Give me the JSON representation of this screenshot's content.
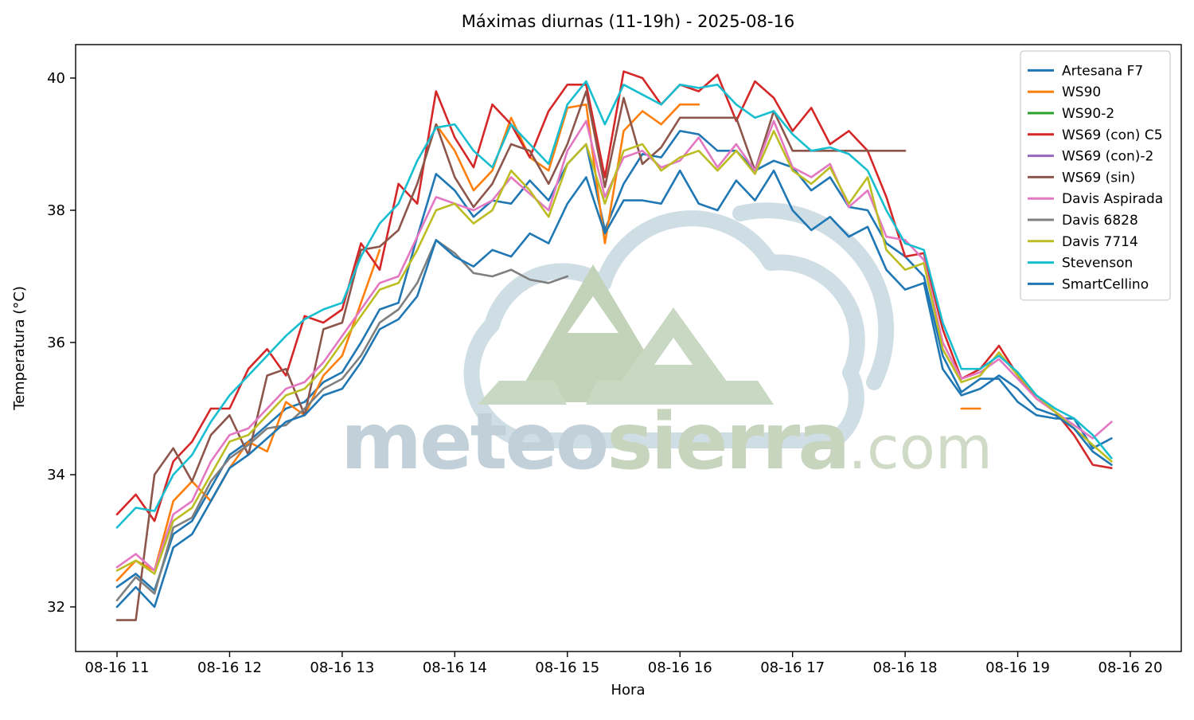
{
  "title": "Máximas diurnas (11-19h) - 2025-08-16",
  "xlabel": "Hora",
  "ylabel": "Temperatura (°C)",
  "watermark": {
    "part_blue": "meteo",
    "part_green": "sierra",
    "part_suffix": ".com"
  },
  "colors": {
    "spine": "#000000",
    "legend_border": "#cccccc",
    "watermark_blue": "#bccdd6",
    "watermark_green": "#c3d2b9",
    "watermark_light_green": "#ccd9c2",
    "watermark_cloud": "#ccdce3"
  },
  "chart_data": {
    "type": "line",
    "title": "Máximas diurnas (11-19h) - 2025-08-16",
    "xlabel": "Hora",
    "ylabel": "Temperatura (°C)",
    "x_tick_labels": [
      "08-16 11",
      "08-16 12",
      "08-16 13",
      "08-16 14",
      "08-16 15",
      "08-16 16",
      "08-16 17",
      "08-16 18",
      "08-16 19",
      "08-16 20"
    ],
    "x_tick_minutes": [
      660,
      720,
      780,
      840,
      900,
      960,
      1020,
      1080,
      1140,
      1200
    ],
    "y_ticks": [
      32,
      34,
      36,
      38,
      40
    ],
    "ylim": [
      31.3,
      40.5
    ],
    "xlim_minutes": [
      638,
      1227
    ],
    "grid": false,
    "legend_position": "upper right",
    "x_minutes": [
      660,
      670,
      680,
      690,
      700,
      710,
      720,
      730,
      740,
      750,
      760,
      770,
      780,
      790,
      800,
      810,
      820,
      830,
      840,
      850,
      860,
      870,
      880,
      890,
      900,
      910,
      920,
      930,
      940,
      950,
      960,
      970,
      980,
      990,
      1000,
      1010,
      1020,
      1030,
      1040,
      1050,
      1060,
      1070,
      1080,
      1090,
      1100,
      1110,
      1120,
      1130,
      1140,
      1150,
      1160,
      1170,
      1180,
      1190
    ],
    "series": [
      {
        "name": "Artesana F7",
        "color": "#1f77b4",
        "values": [
          32.3,
          32.5,
          32.25,
          33.1,
          33.3,
          33.8,
          34.3,
          34.5,
          34.75,
          35.0,
          35.1,
          35.4,
          35.55,
          36.0,
          36.5,
          36.6,
          37.6,
          38.55,
          38.3,
          37.9,
          38.15,
          38.1,
          38.45,
          38.15,
          38.7,
          39.0,
          37.7,
          38.4,
          38.85,
          38.8,
          39.2,
          39.15,
          38.9,
          38.9,
          38.6,
          38.75,
          38.65,
          38.3,
          38.5,
          38.05,
          38.0,
          37.5,
          37.3,
          37.0,
          35.8,
          35.25,
          35.45,
          35.45,
          35.1,
          34.9,
          34.85,
          34.85,
          34.4,
          34.55
        ]
      },
      {
        "name": "WS90",
        "color": "#ff7f0e",
        "values": [
          32.4,
          32.7,
          32.55,
          33.6,
          33.9,
          33.6,
          34.1,
          34.5,
          34.35,
          35.1,
          34.9,
          35.5,
          35.8,
          36.6,
          37.4,
          null,
          null,
          39.3,
          38.9,
          38.3,
          38.6,
          39.4,
          38.8,
          38.6,
          39.55,
          39.6,
          37.5,
          39.2,
          39.5,
          39.3,
          39.6,
          39.6,
          null,
          null,
          null,
          null,
          null,
          null,
          null,
          null,
          null,
          null,
          null,
          null,
          null,
          35.0,
          35.0,
          null,
          null,
          null,
          null,
          null,
          null,
          null
        ]
      },
      {
        "name": "WS90-2",
        "color": "#2ca02c",
        "values": [
          null,
          null,
          null,
          null,
          null,
          null,
          null,
          null,
          null,
          null,
          null,
          null,
          null,
          null,
          null,
          null,
          null,
          null,
          null,
          null,
          null,
          null,
          null,
          null,
          null,
          null,
          null,
          null,
          null,
          null,
          null,
          null,
          null,
          null,
          null,
          null,
          null,
          null,
          null,
          null,
          null,
          null,
          null,
          null,
          null,
          null,
          null,
          null,
          null,
          null,
          null,
          null,
          null,
          null
        ]
      },
      {
        "name": "WS69 (con) C5",
        "color": "#d62728",
        "values": [
          33.4,
          33.7,
          33.3,
          34.2,
          34.5,
          35.0,
          35.0,
          35.6,
          35.9,
          35.5,
          36.4,
          36.3,
          36.5,
          37.5,
          37.1,
          38.4,
          38.1,
          39.8,
          39.1,
          38.65,
          39.6,
          39.3,
          38.8,
          39.5,
          39.9,
          39.9,
          38.5,
          40.1,
          40.0,
          39.6,
          39.9,
          39.8,
          40.05,
          39.35,
          39.95,
          39.7,
          39.2,
          39.55,
          39.0,
          39.2,
          38.9,
          38.2,
          37.3,
          37.35,
          36.2,
          35.45,
          35.6,
          35.95,
          35.5,
          35.15,
          34.95,
          34.6,
          34.15,
          34.1
        ]
      },
      {
        "name": "WS69 (con)-2",
        "color": "#9467bd",
        "values": [
          null,
          null,
          null,
          null,
          null,
          null,
          null,
          null,
          null,
          null,
          null,
          null,
          null,
          null,
          null,
          null,
          null,
          null,
          null,
          null,
          null,
          null,
          null,
          null,
          null,
          null,
          null,
          null,
          null,
          null,
          null,
          null,
          null,
          null,
          null,
          null,
          null,
          null,
          null,
          null,
          null,
          null,
          null,
          null,
          null,
          null,
          null,
          null,
          null,
          null,
          null,
          null,
          null,
          null
        ]
      },
      {
        "name": "WS69 (sin)",
        "color": "#8c564b",
        "values": [
          31.8,
          31.8,
          34.0,
          34.4,
          33.9,
          34.6,
          34.9,
          34.3,
          35.5,
          35.6,
          34.9,
          36.2,
          36.3,
          37.4,
          37.45,
          37.7,
          38.4,
          39.3,
          38.5,
          38.05,
          38.4,
          39.0,
          38.9,
          38.4,
          39.0,
          39.8,
          38.35,
          39.7,
          38.7,
          38.95,
          39.4,
          39.4,
          39.4,
          39.4,
          38.6,
          39.5,
          38.9,
          38.9,
          38.9,
          38.9,
          38.9,
          38.9,
          38.9,
          null,
          null,
          null,
          null,
          null,
          null,
          null,
          null,
          null,
          null,
          null
        ]
      },
      {
        "name": "Davis Aspirada",
        "color": "#e377c2",
        "values": [
          32.6,
          32.8,
          32.55,
          33.4,
          33.6,
          34.2,
          34.6,
          34.7,
          35.0,
          35.3,
          35.4,
          35.7,
          36.1,
          36.5,
          36.9,
          37.0,
          37.6,
          38.2,
          38.1,
          38.0,
          38.15,
          38.5,
          38.25,
          38.0,
          38.9,
          39.35,
          38.2,
          38.8,
          38.9,
          38.65,
          38.75,
          39.1,
          38.65,
          39.0,
          38.6,
          39.35,
          38.65,
          38.5,
          38.7,
          38.05,
          38.3,
          37.6,
          37.55,
          37.25,
          36.0,
          35.45,
          35.55,
          35.75,
          35.45,
          35.15,
          34.95,
          34.75,
          34.55,
          34.8
        ]
      },
      {
        "name": "Davis 6828",
        "color": "#7f7f7f",
        "values": [
          32.1,
          32.45,
          32.2,
          33.2,
          33.35,
          33.9,
          34.25,
          34.45,
          34.7,
          34.75,
          35.0,
          35.3,
          35.45,
          35.8,
          36.3,
          36.5,
          36.9,
          37.55,
          37.35,
          37.05,
          37.0,
          37.1,
          36.95,
          36.9,
          37.0,
          null,
          null,
          null,
          null,
          null,
          null,
          null,
          null,
          null,
          null,
          null,
          null,
          null,
          null,
          null,
          null,
          null,
          null,
          null,
          null,
          null,
          null,
          null,
          null,
          null,
          null,
          null,
          null,
          null
        ]
      },
      {
        "name": "Davis 7714",
        "color": "#bcbd22",
        "values": [
          32.55,
          32.7,
          32.5,
          33.3,
          33.5,
          34.0,
          34.5,
          34.6,
          34.9,
          35.2,
          35.3,
          35.6,
          36.0,
          36.4,
          36.8,
          36.9,
          37.4,
          38.0,
          38.1,
          37.8,
          38.0,
          38.6,
          38.3,
          37.9,
          38.7,
          39.0,
          38.1,
          38.9,
          39.0,
          38.6,
          38.8,
          38.9,
          38.6,
          38.9,
          38.55,
          39.2,
          38.6,
          38.4,
          38.65,
          38.1,
          38.5,
          37.4,
          37.1,
          37.2,
          35.9,
          35.4,
          35.5,
          35.85,
          35.5,
          35.2,
          34.95,
          34.7,
          34.45,
          34.2
        ]
      },
      {
        "name": "Stevenson",
        "color": "#17becf",
        "values": [
          33.2,
          33.5,
          33.45,
          34.0,
          34.3,
          34.8,
          35.2,
          35.5,
          35.8,
          36.1,
          36.35,
          36.5,
          36.6,
          37.3,
          37.8,
          38.1,
          38.75,
          39.25,
          39.3,
          38.9,
          38.65,
          39.3,
          39.0,
          38.7,
          39.6,
          39.95,
          39.3,
          39.9,
          39.75,
          39.6,
          39.9,
          39.85,
          39.9,
          39.6,
          39.4,
          39.5,
          39.15,
          38.9,
          38.95,
          38.85,
          38.6,
          38.0,
          37.5,
          37.4,
          36.3,
          35.6,
          35.6,
          35.8,
          35.55,
          35.2,
          35.0,
          34.85,
          34.6,
          34.25
        ]
      },
      {
        "name": "SmartCellino",
        "color": "#1f77b4",
        "values": [
          32.0,
          32.3,
          32.0,
          32.9,
          33.1,
          33.6,
          34.1,
          34.3,
          34.55,
          34.8,
          34.9,
          35.2,
          35.3,
          35.7,
          36.2,
          36.35,
          36.7,
          37.55,
          37.3,
          37.15,
          37.4,
          37.3,
          37.65,
          37.5,
          38.1,
          38.5,
          37.65,
          38.15,
          38.15,
          38.1,
          38.6,
          38.1,
          38.0,
          38.45,
          38.15,
          38.6,
          38.0,
          37.7,
          37.9,
          37.6,
          37.75,
          37.1,
          36.8,
          36.9,
          35.6,
          35.2,
          35.3,
          35.5,
          35.3,
          35.0,
          34.9,
          34.7,
          34.35,
          34.15
        ]
      }
    ]
  }
}
